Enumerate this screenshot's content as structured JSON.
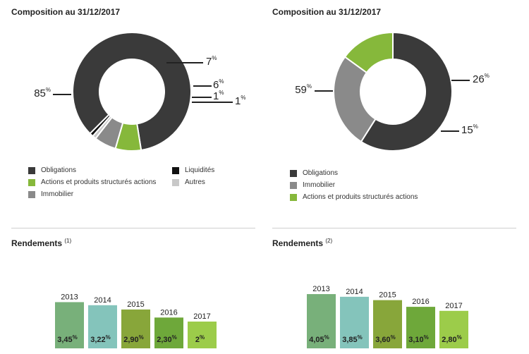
{
  "chart_data": [
    {
      "type": "pie",
      "title": "Composition au 31/12/2017",
      "series": [
        {
          "name": "Obligations",
          "value": 85,
          "label": "85",
          "color": "#3a3a3a"
        },
        {
          "name": "Actions et produits structurés actions",
          "value": 7,
          "label": "7",
          "color": "#86b83b"
        },
        {
          "name": "Immobilier",
          "value": 6,
          "label": "6",
          "color": "#8a8a8a"
        },
        {
          "name": "Autres",
          "value": 1,
          "label": "1",
          "color": "#c8c8c8"
        },
        {
          "name": "Liquidités",
          "value": 1,
          "label": "1",
          "color": "#111111"
        }
      ],
      "label_unit": "%",
      "legend": "bottom"
    },
    {
      "type": "pie",
      "title": "Composition au 31/12/2017",
      "series": [
        {
          "name": "Obligations",
          "value": 59,
          "label": "59",
          "color": "#3a3a3a"
        },
        {
          "name": "Immobilier",
          "value": 26,
          "label": "26",
          "color": "#8a8a8a"
        },
        {
          "name": "Actions et produits structurés actions",
          "value": 15,
          "label": "15",
          "color": "#86b83b"
        }
      ],
      "label_unit": "%",
      "legend": "bottom"
    },
    {
      "type": "bar",
      "title": "Rendements",
      "title_note": "(1)",
      "categories": [
        "2013",
        "2014",
        "2015",
        "2016",
        "2017"
      ],
      "values": [
        3.45,
        3.22,
        2.9,
        2.3,
        2.0
      ],
      "value_labels": [
        "3,45",
        "3,22",
        "2,90",
        "2,30",
        "2"
      ],
      "value_unit": "%",
      "colors": [
        "#78b07a",
        "#84c4bb",
        "#88a63a",
        "#6ea83a",
        "#9ccc4a"
      ]
    },
    {
      "type": "bar",
      "title": "Rendements",
      "title_note": "(2)",
      "categories": [
        "2013",
        "2014",
        "2015",
        "2016",
        "2017"
      ],
      "values": [
        4.05,
        3.85,
        3.6,
        3.1,
        2.8
      ],
      "value_labels": [
        "4,05",
        "3,85",
        "3,60",
        "3,10",
        "2,80"
      ],
      "value_unit": "%",
      "colors": [
        "#78b07a",
        "#84c4bb",
        "#88a63a",
        "#6ea83a",
        "#9ccc4a"
      ]
    }
  ],
  "legend1": {
    "col1": [
      "Obligations",
      "Actions et produits structurés actions",
      "Immobilier"
    ],
    "col2": [
      "Liquidités",
      "Autres"
    ]
  },
  "legend2": [
    "Obligations",
    "Immobilier",
    "Actions et produits structurés actions"
  ]
}
